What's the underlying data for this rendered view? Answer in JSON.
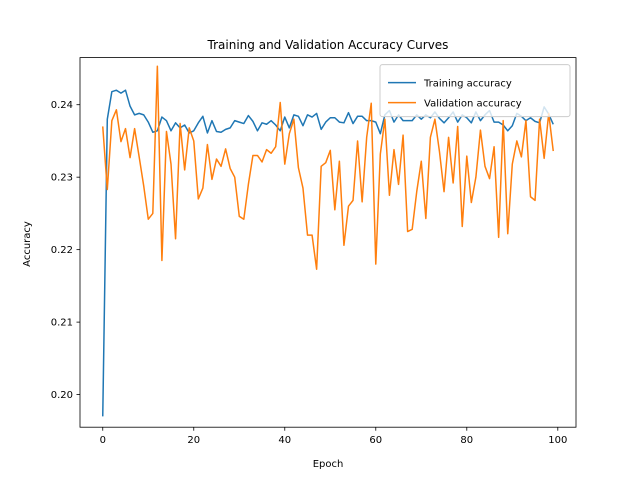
{
  "chart_data": {
    "type": "line",
    "title": "Training and Validation Accuracy Curves",
    "xlabel": "Epoch",
    "ylabel": "Accuracy",
    "xlim": [
      -5,
      104
    ],
    "ylim": [
      0.1955,
      0.2465
    ],
    "x_ticks": [
      0,
      20,
      40,
      60,
      80,
      100
    ],
    "y_ticks": [
      0.2,
      0.21,
      0.22,
      0.23,
      0.24
    ],
    "y_tick_labels": [
      "0.20",
      "0.21",
      "0.22",
      "0.23",
      "0.24"
    ],
    "grid": false,
    "legend_position": "top-right",
    "x": [
      0,
      1,
      2,
      3,
      4,
      5,
      6,
      7,
      8,
      9,
      10,
      11,
      12,
      13,
      14,
      15,
      16,
      17,
      18,
      19,
      20,
      21,
      22,
      23,
      24,
      25,
      26,
      27,
      28,
      29,
      30,
      31,
      32,
      33,
      34,
      35,
      36,
      37,
      38,
      39,
      40,
      41,
      42,
      43,
      44,
      45,
      46,
      47,
      48,
      49,
      50,
      51,
      52,
      53,
      54,
      55,
      56,
      57,
      58,
      59,
      60,
      61,
      62,
      63,
      64,
      65,
      66,
      67,
      68,
      69,
      70,
      71,
      72,
      73,
      74,
      75,
      76,
      77,
      78,
      79,
      80,
      81,
      82,
      83,
      84,
      85,
      86,
      87,
      88,
      89,
      90,
      91,
      92,
      93,
      94,
      95,
      96,
      97,
      98,
      99
    ],
    "series": [
      {
        "name": "Training accuracy",
        "color": "#1f77b4",
        "values": [
          0.197,
          0.238,
          0.2418,
          0.242,
          0.2416,
          0.242,
          0.2398,
          0.2386,
          0.2388,
          0.2386,
          0.2376,
          0.2362,
          0.2364,
          0.2383,
          0.2378,
          0.2364,
          0.2375,
          0.2368,
          0.2372,
          0.2361,
          0.2364,
          0.2375,
          0.2384,
          0.2361,
          0.2378,
          0.2363,
          0.2362,
          0.2366,
          0.2368,
          0.2378,
          0.2376,
          0.2374,
          0.2385,
          0.2377,
          0.2364,
          0.2375,
          0.2373,
          0.2378,
          0.2372,
          0.2364,
          0.2383,
          0.2368,
          0.2386,
          0.2384,
          0.2371,
          0.2386,
          0.2383,
          0.2388,
          0.2366,
          0.2376,
          0.2382,
          0.2382,
          0.2376,
          0.2375,
          0.2389,
          0.2374,
          0.2384,
          0.2384,
          0.2378,
          0.2378,
          0.2376,
          0.236,
          0.2386,
          0.2392,
          0.2376,
          0.2386,
          0.2378,
          0.2378,
          0.2378,
          0.2386,
          0.238,
          0.2386,
          0.2382,
          0.239,
          0.2381,
          0.2375,
          0.2382,
          0.239,
          0.2376,
          0.2386,
          0.2382,
          0.2375,
          0.239,
          0.2378,
          0.2386,
          0.2392,
          0.2376,
          0.2376,
          0.2372,
          0.2364,
          0.2371,
          0.2388,
          0.2384,
          0.2378,
          0.2382,
          0.2377,
          0.2375,
          0.2397,
          0.2387,
          0.2373
        ]
      },
      {
        "name": "Validation accuracy",
        "color": "#ff7f0e",
        "values": [
          0.237,
          0.2283,
          0.2378,
          0.2393,
          0.2349,
          0.2367,
          0.2327,
          0.2367,
          0.2328,
          0.2288,
          0.2242,
          0.225,
          0.2453,
          0.2185,
          0.2363,
          0.2318,
          0.2215,
          0.2374,
          0.231,
          0.2368,
          0.235,
          0.227,
          0.2285,
          0.2345,
          0.2297,
          0.2325,
          0.2315,
          0.2339,
          0.2312,
          0.23,
          0.2246,
          0.2242,
          0.229,
          0.233,
          0.233,
          0.2321,
          0.2338,
          0.2333,
          0.2342,
          0.2403,
          0.2318,
          0.236,
          0.238,
          0.2313,
          0.2285,
          0.222,
          0.222,
          0.2173,
          0.2315,
          0.232,
          0.2337,
          0.2255,
          0.2322,
          0.2206,
          0.226,
          0.2268,
          0.235,
          0.2266,
          0.2355,
          0.2402,
          0.218,
          0.2332,
          0.238,
          0.2275,
          0.2338,
          0.229,
          0.2358,
          0.2225,
          0.2228,
          0.228,
          0.2322,
          0.2243,
          0.2355,
          0.238,
          0.2335,
          0.228,
          0.2355,
          0.2292,
          0.237,
          0.2232,
          0.2329,
          0.2265,
          0.23,
          0.2365,
          0.2315,
          0.2298,
          0.2342,
          0.2217,
          0.2378,
          0.2222,
          0.2318,
          0.235,
          0.2328,
          0.2378,
          0.2273,
          0.2268,
          0.238,
          0.2326,
          0.2388,
          0.2336
        ]
      }
    ]
  }
}
